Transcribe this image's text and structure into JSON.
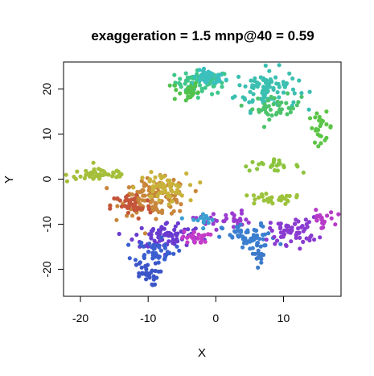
{
  "chart_data": {
    "type": "scatter",
    "title": "exaggeration = 1.5 mnp@40 = 0.59",
    "xlabel": "X",
    "ylabel": "Y",
    "xlim": [
      -22.5,
      18.5
    ],
    "ylim": [
      -26,
      26
    ],
    "xticks": [
      -20,
      -10,
      0,
      10
    ],
    "yticks": [
      -20,
      -10,
      0,
      10,
      20
    ],
    "grid": false,
    "legend": "none",
    "colors_range": [
      "#c0392b",
      "#b5b53a",
      "#3fbf4f",
      "#3bbfbf",
      "#3b5fd0",
      "#7a3bd0",
      "#c43bc8"
    ],
    "clusters": [
      {
        "name": "top-center",
        "cx": -2.0,
        "cy": 21.5,
        "sx": 2.0,
        "sy": 1.3,
        "n": 70,
        "color": "#3fc78a"
      },
      {
        "name": "top-center-teal",
        "cx": -1.0,
        "cy": 22.5,
        "sx": 1.2,
        "sy": 0.8,
        "n": 40,
        "color": "#3bbfbf"
      },
      {
        "name": "top-left-green",
        "cx": -4.5,
        "cy": 19.5,
        "sx": 1.0,
        "sy": 1.2,
        "n": 25,
        "color": "#52c24d"
      },
      {
        "name": "top-right-teal",
        "cx": 7.5,
        "cy": 20.0,
        "sx": 2.3,
        "sy": 2.3,
        "n": 100,
        "color": "#3bbfb0"
      },
      {
        "name": "top-right-green",
        "cx": 9.0,
        "cy": 16.0,
        "sx": 1.8,
        "sy": 1.3,
        "n": 40,
        "color": "#4cc36b"
      },
      {
        "name": "right-green-strip",
        "cx": 15.5,
        "cy": 11.5,
        "sx": 0.9,
        "sy": 1.6,
        "n": 25,
        "color": "#5cc447"
      },
      {
        "name": "mid-right-strip",
        "cx": 8.0,
        "cy": 3.0,
        "sx": 2.2,
        "sy": 0.6,
        "n": 25,
        "color": "#8cc43d"
      },
      {
        "name": "left-olive-strip",
        "cx": -17.0,
        "cy": 1.0,
        "sx": 2.5,
        "sy": 0.8,
        "n": 50,
        "color": "#a5bf3a"
      },
      {
        "name": "mid-olive-strip",
        "cx": 8.0,
        "cy": -4.5,
        "sx": 2.5,
        "sy": 0.6,
        "n": 30,
        "color": "#9cc23a"
      },
      {
        "name": "left-orange",
        "cx": -9.0,
        "cy": -4.0,
        "sx": 2.5,
        "sy": 2.0,
        "n": 120,
        "color": "#c8863a"
      },
      {
        "name": "left-yellow",
        "cx": -8.0,
        "cy": -2.0,
        "sx": 1.8,
        "sy": 1.6,
        "n": 60,
        "color": "#c8b23a"
      },
      {
        "name": "left-red",
        "cx": -12.5,
        "cy": -6.0,
        "sx": 1.5,
        "sy": 1.5,
        "n": 40,
        "color": "#c4553a"
      },
      {
        "name": "center-violet",
        "cx": -7.0,
        "cy": -12.5,
        "sx": 2.5,
        "sy": 1.5,
        "n": 80,
        "color": "#6a3bd0"
      },
      {
        "name": "center-blue",
        "cx": -9.0,
        "cy": -16.0,
        "sx": 1.5,
        "sy": 1.3,
        "n": 50,
        "color": "#3b5fd0"
      },
      {
        "name": "bottom-blue",
        "cx": -10.5,
        "cy": -21.0,
        "sx": 1.0,
        "sy": 1.3,
        "n": 30,
        "color": "#3b55c8"
      },
      {
        "name": "magenta-left",
        "cx": -3.0,
        "cy": -13.0,
        "sx": 1.0,
        "sy": 0.7,
        "n": 25,
        "color": "#c43bc8"
      },
      {
        "name": "center-strip",
        "cx": 1.0,
        "cy": -9.0,
        "sx": 2.0,
        "sy": 1.0,
        "n": 30,
        "color": "#9a3bd0"
      },
      {
        "name": "right-blue",
        "cx": 5.0,
        "cy": -13.0,
        "sx": 2.0,
        "sy": 1.5,
        "n": 60,
        "color": "#3b7fd0"
      },
      {
        "name": "right-purple",
        "cx": 11.5,
        "cy": -11.5,
        "sx": 1.8,
        "sy": 1.5,
        "n": 60,
        "color": "#8a3bd0"
      },
      {
        "name": "right-magenta",
        "cx": 15.5,
        "cy": -9.0,
        "sx": 1.0,
        "sy": 1.0,
        "n": 20,
        "color": "#b83bc8"
      },
      {
        "name": "teal-small",
        "cx": -2.0,
        "cy": -9.0,
        "sx": 1.0,
        "sy": 0.8,
        "n": 15,
        "color": "#3b9fd0"
      },
      {
        "name": "blue-tail",
        "cx": 6.5,
        "cy": -16.5,
        "sx": 0.6,
        "sy": 1.0,
        "n": 15,
        "color": "#3b7ac8"
      }
    ]
  }
}
